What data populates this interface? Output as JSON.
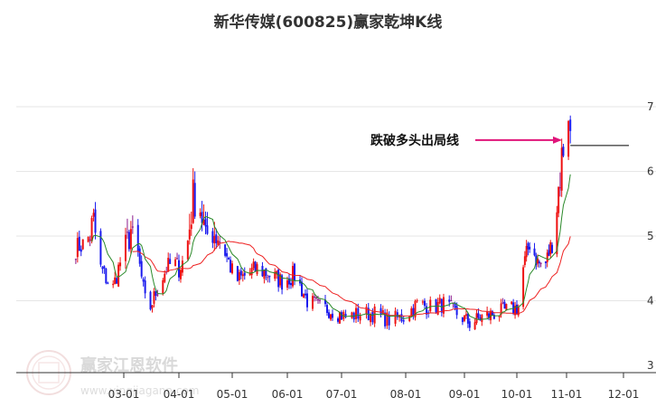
{
  "chart_data": {
    "type": "candlestick",
    "title": "新华传媒(600825)赢家乾坤K线",
    "x_tick_labels": [
      "03-01",
      "04-01",
      "05-01",
      "06-01",
      "07-01",
      "08-01",
      "09-01",
      "10-01",
      "11-01",
      "12-01"
    ],
    "y_ticks": [
      3,
      4,
      5,
      6,
      7
    ],
    "ylim": [
      3,
      7.4
    ],
    "grid": "horizontal",
    "colors": {
      "up": "#ee1111",
      "down": "#1a1aee",
      "neutral": "#8b1a8b",
      "ma_short": "#2a8a2a",
      "ma_long": "#ee2222",
      "annotation": "#e0157a",
      "current_price_line": "#000000"
    },
    "annotation": {
      "text": "跌破多头出局线",
      "price": 6.4
    },
    "watermark": {
      "brand": "赢家江恩软件",
      "url": "www.yingjiagann.com"
    },
    "anchors": [
      [
        "02-01",
        4.8
      ],
      [
        "02-08",
        4.9
      ],
      [
        "02-12",
        5.2
      ],
      [
        "02-16",
        4.5
      ],
      [
        "02-20",
        4.3
      ],
      [
        "02-23",
        4.2
      ],
      [
        "02-27",
        4.6
      ],
      [
        "03-01",
        4.8
      ],
      [
        "03-05",
        5.1
      ],
      [
        "03-09",
        4.7
      ],
      [
        "03-13",
        4.0
      ],
      [
        "03-16",
        3.9
      ],
      [
        "03-20",
        4.2
      ],
      [
        "03-25",
        4.5
      ],
      [
        "03-29",
        4.6
      ],
      [
        "04-01",
        4.5
      ],
      [
        "04-05",
        4.7
      ],
      [
        "04-09",
        5.6
      ],
      [
        "04-12",
        5.6
      ],
      [
        "04-16",
        5.0
      ],
      [
        "04-20",
        5.1
      ],
      [
        "04-25",
        4.9
      ],
      [
        "04-29",
        4.6
      ],
      [
        "05-03",
        4.3
      ],
      [
        "05-09",
        4.4
      ],
      [
        "05-15",
        4.5
      ],
      [
        "05-22",
        4.4
      ],
      [
        "05-29",
        4.3
      ],
      [
        "06-05",
        4.4
      ],
      [
        "06-12",
        4.0
      ],
      [
        "06-19",
        3.9
      ],
      [
        "06-26",
        3.85
      ],
      [
        "07-03",
        3.75
      ],
      [
        "07-10",
        3.8
      ],
      [
        "07-17",
        3.8
      ],
      [
        "07-24",
        3.7
      ],
      [
        "07-31",
        3.75
      ],
      [
        "08-07",
        3.95
      ],
      [
        "08-14",
        3.9
      ],
      [
        "08-21",
        3.95
      ],
      [
        "08-28",
        3.8
      ],
      [
        "09-04",
        3.65
      ],
      [
        "09-11",
        3.75
      ],
      [
        "09-18",
        3.8
      ],
      [
        "09-25",
        3.85
      ],
      [
        "10-02",
        3.9
      ],
      [
        "10-05",
        4.5
      ],
      [
        "10-09",
        4.9
      ],
      [
        "10-14",
        4.6
      ],
      [
        "10-18",
        4.5
      ],
      [
        "10-23",
        4.9
      ],
      [
        "10-26",
        5.5
      ],
      [
        "10-29",
        6.2
      ],
      [
        "11-02",
        7.0
      ],
      [
        "11-03",
        6.5
      ]
    ]
  }
}
